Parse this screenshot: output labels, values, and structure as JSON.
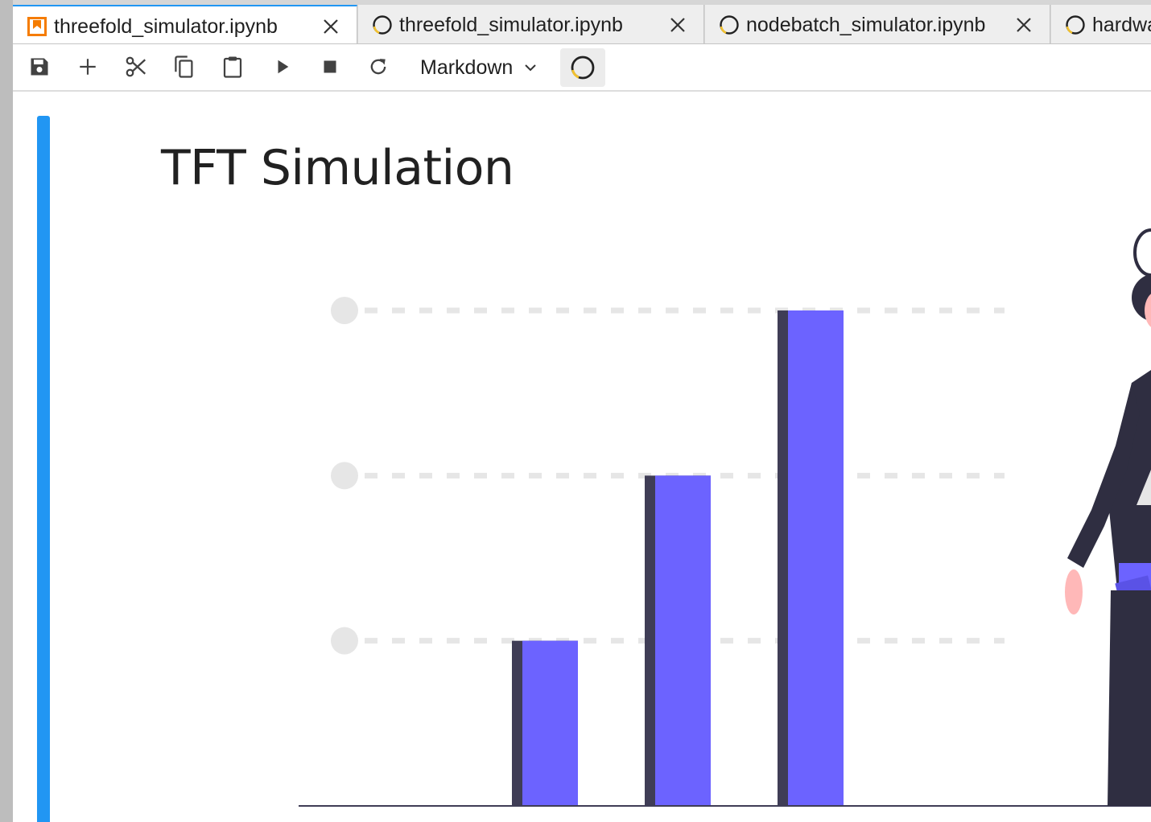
{
  "tabs": [
    {
      "label": "threefold_simulator.ipynb",
      "active": true,
      "icon": "notebook-icon"
    },
    {
      "label": "threefold_simulator.ipynb",
      "active": false,
      "icon": "kernel-busy-icon"
    },
    {
      "label": "nodebatch_simulator.ipynb",
      "active": false,
      "icon": "kernel-busy-icon"
    },
    {
      "label": "hardware_simulator.ipynb",
      "active": false,
      "icon": "kernel-busy-icon"
    }
  ],
  "toolbar": {
    "buttons": [
      "save-icon",
      "plus-icon",
      "scissors-icon",
      "copy-icon",
      "paste-icon",
      "run-icon",
      "stop-icon",
      "restart-icon"
    ],
    "cell_type": "Markdown",
    "kernel_status": "kernel-busy-icon"
  },
  "cell": {
    "title": "TFT Simulation"
  },
  "chart_data": {
    "type": "bar",
    "categories": [
      "",
      "",
      ""
    ],
    "values": [
      1,
      2,
      3
    ],
    "ylim": [
      0,
      3.5
    ],
    "grid": true
  },
  "colors": {
    "accent": "#2196f3",
    "bar": "#6c63ff",
    "bar_shadow": "#3f3d56",
    "gridline": "#e6e6e6",
    "notebook_icon": "#f57c00",
    "busy_icon_arc": "#f2c12e",
    "figure_dark": "#2f2e41",
    "skin": "#ffb8b8"
  }
}
